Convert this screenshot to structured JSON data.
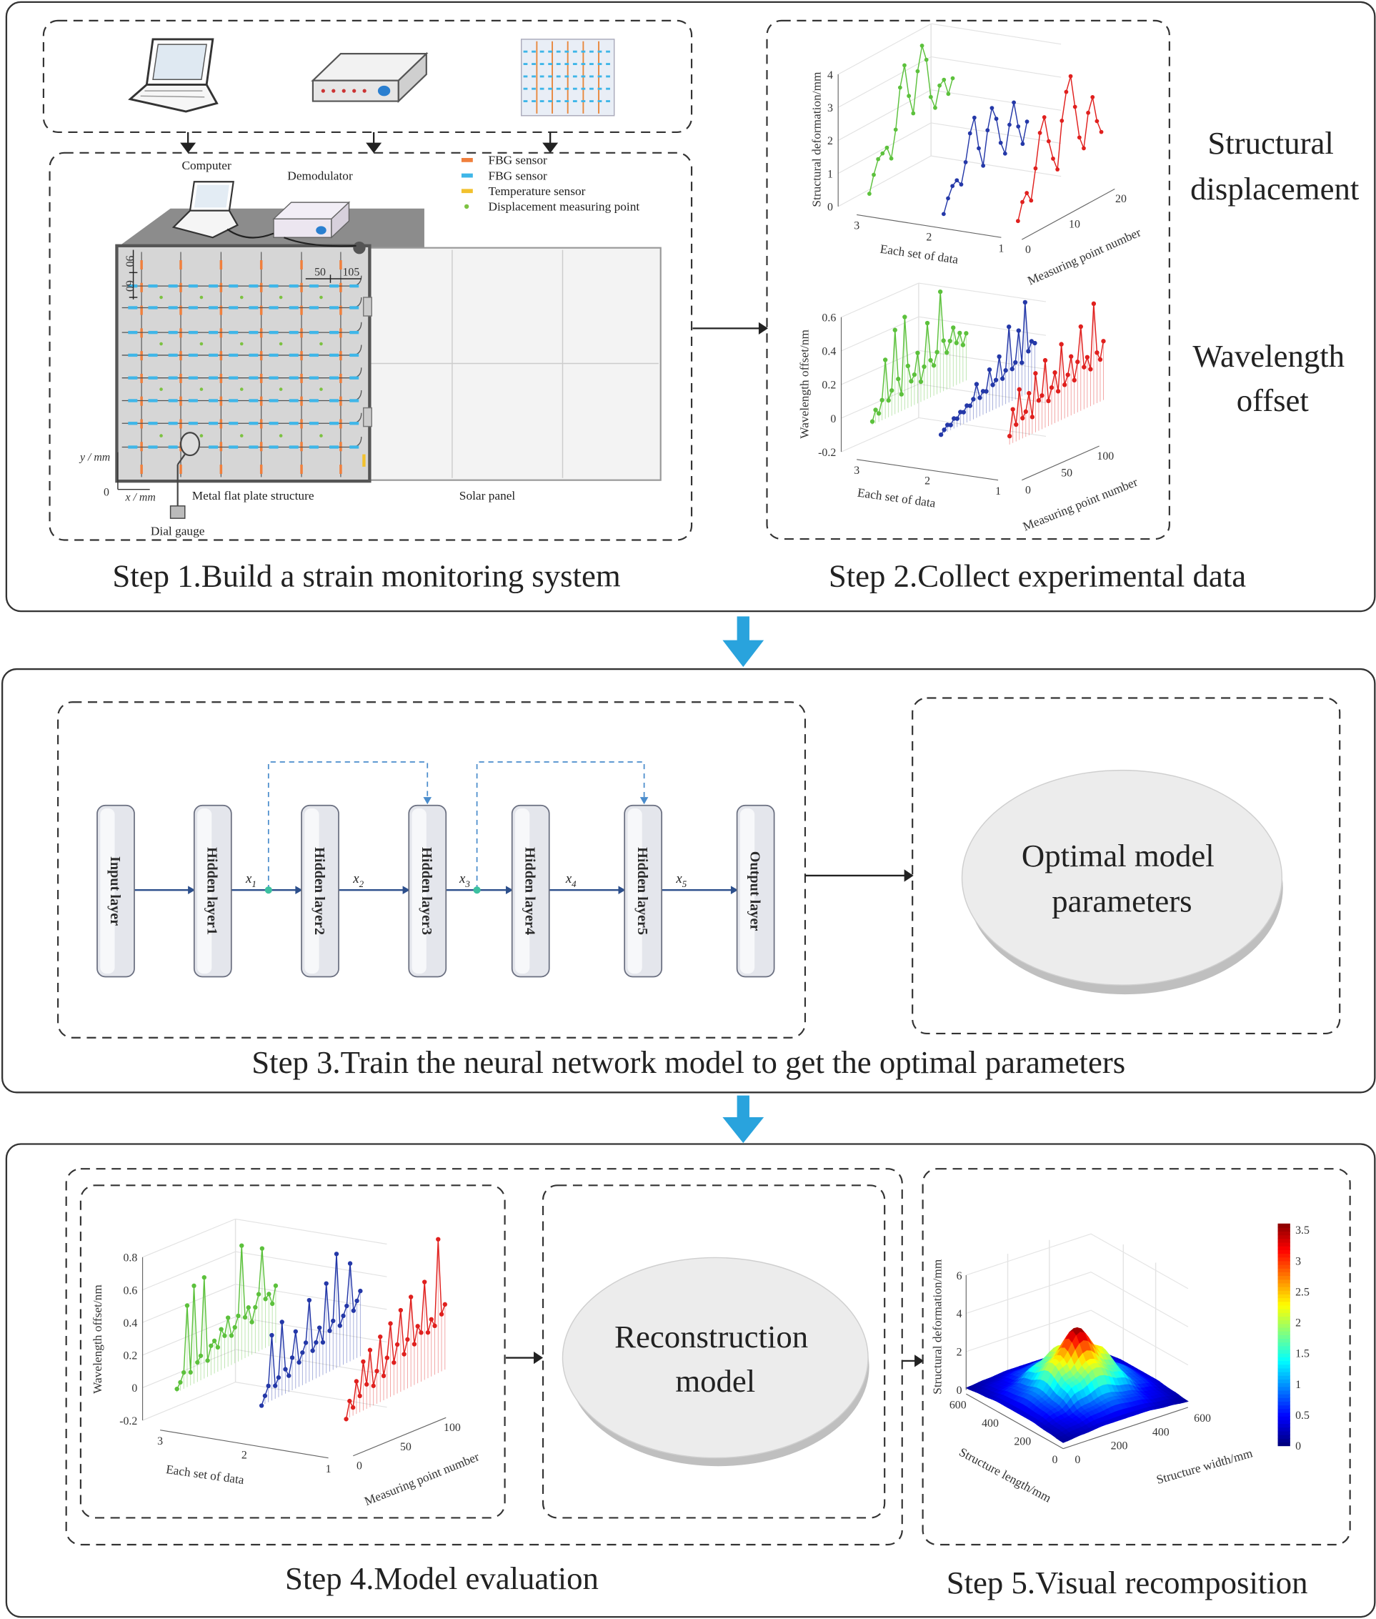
{
  "step1": {
    "caption": "Step 1.Build a strain monitoring system",
    "labels": {
      "computer": "Computer",
      "demodulator": "Demodulator",
      "plate": "Metal flat plate structure",
      "solar": "Solar panel",
      "gauge": "Dial gauge",
      "y_axis": "y / mm",
      "x_axis": "x / mm",
      "origin": "0",
      "dim_90": "90",
      "dim_60": "60",
      "dim_50": "50",
      "dim_105": "105"
    },
    "legend": [
      {
        "label": "FBG sensor",
        "color": "#f07f3c"
      },
      {
        "label": "FBG sensor",
        "color": "#3fb6e8"
      },
      {
        "label": "Temperature sensor",
        "color": "#f2c12e"
      },
      {
        "label": "Displacement measuring point",
        "color": "#7dc242"
      }
    ]
  },
  "step2": {
    "caption": "Step 2.Collect experimental data",
    "side_labels": {
      "displacement": [
        "Structural",
        "displacement"
      ],
      "wavelength": [
        "Wavelength",
        "offset"
      ]
    }
  },
  "step3": {
    "caption": "Step 3.Train the neural network model to get the optimal parameters",
    "layers": [
      "Input layer",
      "Hidden layer1",
      "Hidden layer2",
      "Hidden layer3",
      "Hidden layer4",
      "Hidden layer5",
      "Output layer"
    ],
    "signals": [
      {
        "var": "x",
        "sub": "1"
      },
      {
        "var": "x",
        "sub": "2"
      },
      {
        "var": "x",
        "sub": "3"
      },
      {
        "var": "x",
        "sub": "4"
      },
      {
        "var": "x",
        "sub": "5"
      }
    ],
    "result": [
      "Optimal model",
      "parameters"
    ]
  },
  "step4": {
    "caption": "Step 4.Model evaluation",
    "model": [
      "Reconstruction",
      "model"
    ]
  },
  "step5": {
    "caption": "Step 5.Visual recomposition"
  },
  "colors": {
    "arrow_blue": "#29a3dd",
    "set3": "#5cc13c",
    "set2": "#2438a8",
    "set1": "#e0201e"
  },
  "chart_data": [
    {
      "type": "line3d",
      "zlabel": "Structural deformation/mm",
      "xlabel": "Each set of data",
      "ylabel": "Measuring point number",
      "z_ticks": [
        "0",
        "1",
        "2",
        "3",
        "4"
      ],
      "x_ticks": [
        "3",
        "2",
        "1"
      ],
      "y_ticks": [
        "0",
        "10",
        "20"
      ],
      "series": [
        {
          "set": 3,
          "color": "#5cc13c",
          "values": [
            0.5,
            1.0,
            1.4,
            1.5,
            1.6,
            1.2,
            2.0,
            3.2,
            3.8,
            2.8,
            2.2,
            3.4,
            4.1,
            3.6,
            2.4,
            2.0,
            2.6,
            2.7,
            2.2,
            2.6
          ]
        },
        {
          "set": 2,
          "color": "#2438a8",
          "values": [
            0.2,
            0.6,
            0.9,
            1.0,
            0.8,
            1.4,
            2.2,
            2.6,
            1.6,
            1.0,
            2.0,
            2.6,
            2.2,
            1.4,
            1.0,
            1.8,
            2.4,
            1.6,
            1.0,
            1.6
          ]
        },
        {
          "set": 1,
          "color": "#e0201e",
          "values": [
            0.3,
            0.8,
            1.0,
            0.7,
            1.6,
            2.6,
            3.0,
            2.2,
            1.6,
            1.2,
            2.6,
            3.4,
            3.8,
            2.8,
            1.8,
            1.4,
            2.4,
            2.8,
            2.0,
            1.6
          ]
        }
      ]
    },
    {
      "type": "line3d",
      "zlabel": "Wavelength offset/nm",
      "xlabel": "Each set of data",
      "ylabel": "Measuring point number",
      "z_ticks": [
        "-0.2",
        "0",
        "0.2",
        "0.4",
        "0.6"
      ],
      "x_ticks": [
        "3",
        "2",
        "1"
      ],
      "y_ticks": [
        "0",
        "50",
        "100"
      ],
      "series": [
        {
          "set": 3,
          "color": "#5cc13c",
          "values": [
            0.02,
            0.08,
            0.05,
            0.12,
            0.35,
            0.1,
            0.15,
            0.5,
            0.2,
            0.1,
            0.55,
            0.25,
            0.15,
            0.18,
            0.3,
            0.12,
            0.2,
            0.45,
            0.22,
            0.18,
            0.25,
            0.6,
            0.3,
            0.22,
            0.28,
            0.35,
            0.25,
            0.3,
            0.22,
            0.28
          ]
        },
        {
          "set": 2,
          "color": "#2438a8",
          "values": [
            0.0,
            0.02,
            0.04,
            0.03,
            0.06,
            0.05,
            0.08,
            0.07,
            0.1,
            0.09,
            0.12,
            0.2,
            0.11,
            0.14,
            0.13,
            0.25,
            0.15,
            0.17,
            0.3,
            0.16,
            0.2,
            0.45,
            0.19,
            0.22,
            0.4,
            0.2,
            0.55,
            0.25,
            0.3,
            0.28
          ]
        },
        {
          "set": 1,
          "color": "#e0201e",
          "values": [
            0.05,
            0.2,
            0.1,
            0.3,
            0.12,
            0.15,
            0.25,
            0.1,
            0.35,
            0.18,
            0.2,
            0.4,
            0.15,
            0.22,
            0.3,
            0.18,
            0.45,
            0.2,
            0.25,
            0.35,
            0.2,
            0.3,
            0.5,
            0.25,
            0.3,
            0.22,
            0.6,
            0.3,
            0.25,
            0.35
          ]
        }
      ]
    },
    {
      "type": "line3d",
      "zlabel": "Wavelength offset/nm",
      "xlabel": "Each set of data",
      "ylabel": "Measuring point number",
      "z_ticks": [
        "-0.2",
        "0",
        "0.2",
        "0.4",
        "0.6",
        "0.8"
      ],
      "x_ticks": [
        "3",
        "2",
        "1"
      ],
      "y_ticks": [
        "0",
        "50",
        "100"
      ],
      "series": [
        {
          "set": 3,
          "color": "#5cc13c",
          "values": [
            0.02,
            0.05,
            0.1,
            0.5,
            0.08,
            0.6,
            0.12,
            0.15,
            0.62,
            0.1,
            0.18,
            0.2,
            0.15,
            0.25,
            0.2,
            0.3,
            0.18,
            0.22,
            0.28,
            0.7,
            0.25,
            0.3,
            0.2,
            0.28,
            0.35,
            0.62,
            0.3,
            0.32,
            0.25,
            0.35
          ]
        },
        {
          "set": 2,
          "color": "#2438a8",
          "values": [
            0.0,
            0.05,
            0.1,
            0.4,
            0.08,
            0.12,
            0.45,
            0.15,
            0.1,
            0.2,
            0.35,
            0.15,
            0.2,
            0.25,
            0.5,
            0.18,
            0.22,
            0.3,
            0.2,
            0.55,
            0.25,
            0.3,
            0.7,
            0.25,
            0.3,
            0.35,
            0.6,
            0.3,
            0.35,
            0.4
          ]
        },
        {
          "set": 1,
          "color": "#e0201e",
          "values": [
            0.0,
            0.1,
            0.05,
            0.2,
            0.1,
            0.3,
            0.15,
            0.35,
            0.12,
            0.2,
            0.4,
            0.15,
            0.25,
            0.45,
            0.2,
            0.3,
            0.5,
            0.22,
            0.3,
            0.55,
            0.25,
            0.35,
            0.3,
            0.6,
            0.28,
            0.35,
            0.3,
            0.82,
            0.35,
            0.4
          ]
        }
      ]
    },
    {
      "type": "surface",
      "zlabel": "Structural deformation/mm",
      "xlabel": "Structure length/mm",
      "ylabel": "Structure width/mm",
      "z_ticks": [
        "0",
        "2",
        "4",
        "6"
      ],
      "x_ticks": [
        "0",
        "200",
        "400",
        "600"
      ],
      "y_ticks": [
        "0",
        "200",
        "400",
        "600"
      ],
      "colorbar_ticks": [
        "0",
        "0.5",
        "1",
        "1.5",
        "2",
        "2.5",
        "3",
        "3.5"
      ],
      "colormap": "jet",
      "clim": [
        0,
        3.6
      ],
      "grid_length": [
        0,
        100,
        200,
        300,
        400,
        500,
        600
      ],
      "grid_width": [
        0,
        100,
        200,
        300,
        400,
        500,
        600
      ],
      "z": [
        [
          0.1,
          0.2,
          0.3,
          0.3,
          0.3,
          0.2,
          0.1
        ],
        [
          0.2,
          0.4,
          0.7,
          0.9,
          0.7,
          0.4,
          0.2
        ],
        [
          0.3,
          0.7,
          1.6,
          2.2,
          1.6,
          0.7,
          0.3
        ],
        [
          0.3,
          0.9,
          2.3,
          3.6,
          2.3,
          0.9,
          0.3
        ],
        [
          0.3,
          0.7,
          1.6,
          2.2,
          1.6,
          0.7,
          0.3
        ],
        [
          0.2,
          0.4,
          0.7,
          0.9,
          0.7,
          0.4,
          0.2
        ],
        [
          0.1,
          0.2,
          0.3,
          0.3,
          0.3,
          0.2,
          0.1
        ]
      ]
    }
  ]
}
